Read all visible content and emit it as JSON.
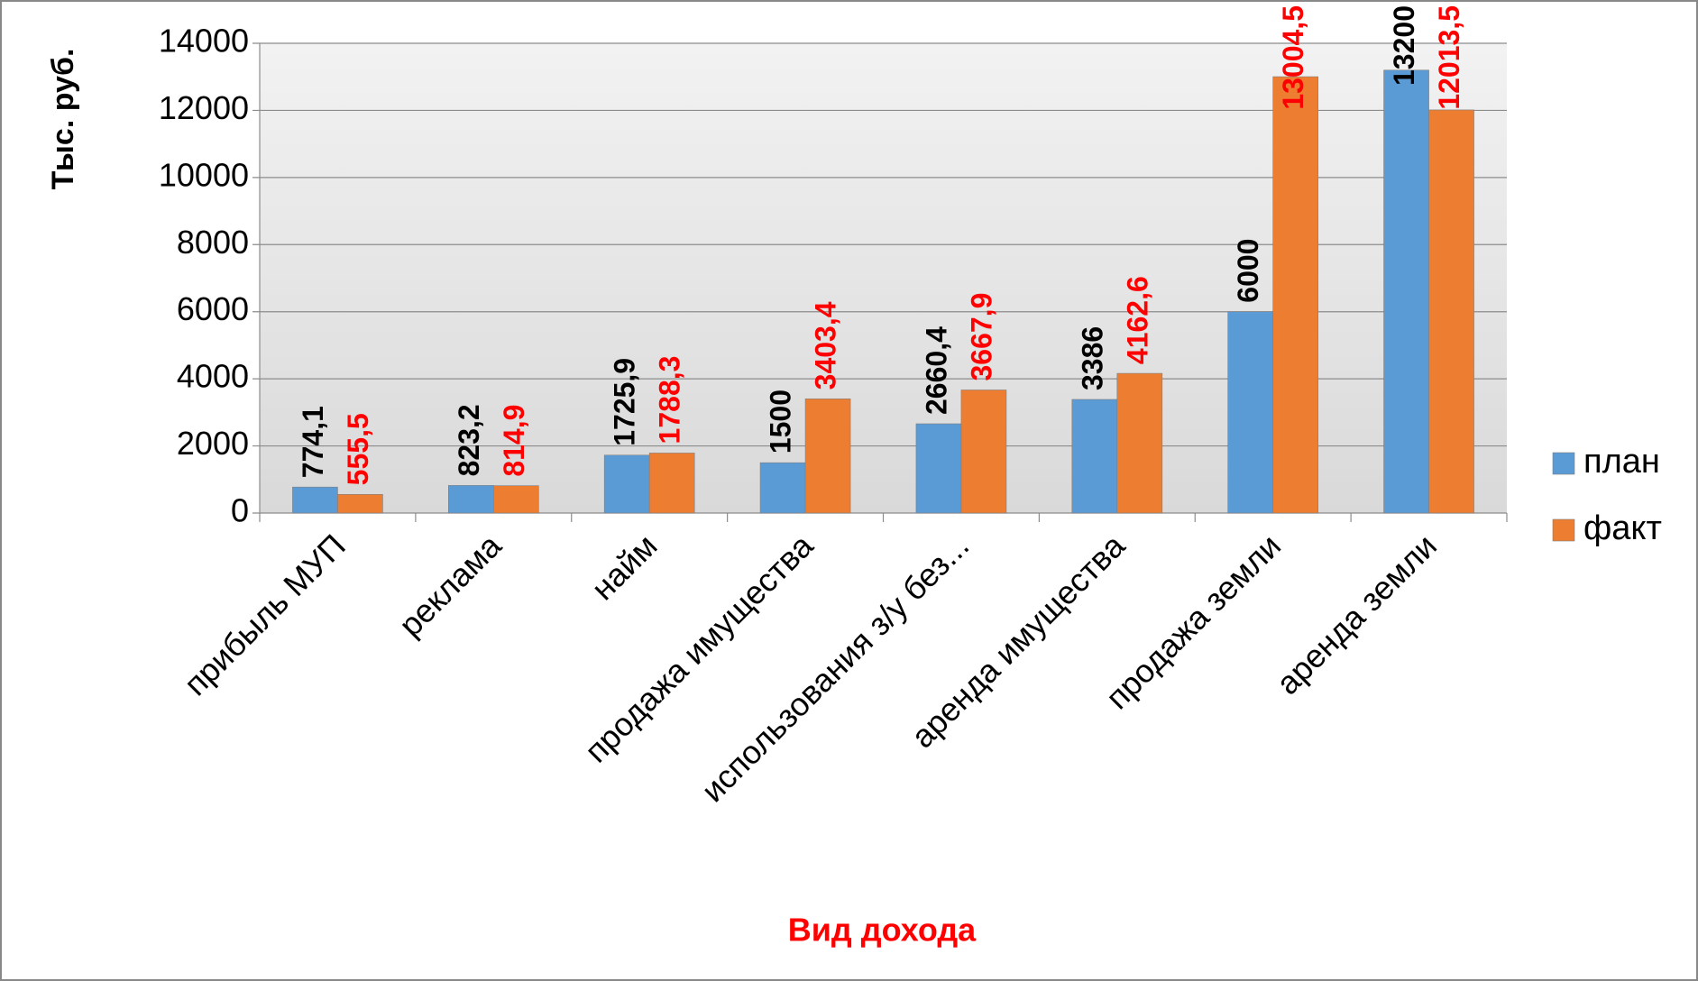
{
  "chart_data": {
    "type": "bar",
    "y_label": "Тыс. руб.",
    "x_label": "Вид дохода",
    "categories": [
      "прибыль МУП",
      "реклама",
      "найм",
      "продажа имущества",
      "использования з/у без...",
      "аренда имущества",
      "продажа земли",
      "аренда земли"
    ],
    "series": [
      {
        "name": "план",
        "color": "#5b9bd5",
        "label_color": "#000000",
        "values": [
          774.1,
          823.2,
          1725.9,
          1500,
          2660.4,
          3386,
          6000,
          13200
        ],
        "value_labels": [
          "774,1",
          "823,2",
          "1725,9",
          "1500",
          "2660,4",
          "3386",
          "6000",
          "13200"
        ]
      },
      {
        "name": "факт",
        "color": "#ed7d31",
        "label_color": "#ff0000",
        "values": [
          555.5,
          814.9,
          1788.3,
          3403.4,
          3667.9,
          4162.6,
          13004.5,
          12013.5
        ],
        "value_labels": [
          "555,5",
          "814,9",
          "1788,3",
          "3403,4",
          "3667,9",
          "4162,6",
          "13004,5",
          "12013,5"
        ]
      }
    ],
    "ylim": [
      0,
      14000
    ],
    "yticks": [
      0,
      2000,
      4000,
      6000,
      8000,
      10000,
      12000,
      14000
    ],
    "grid": true,
    "legend": "right"
  }
}
